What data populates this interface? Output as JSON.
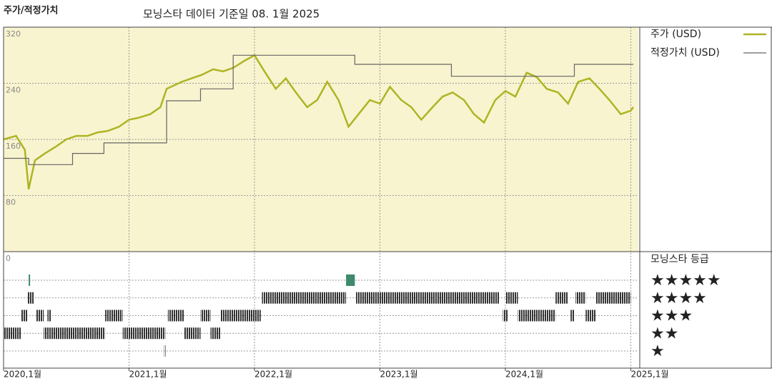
{
  "header": {
    "title": "주가/적정가치",
    "subtitle": "모닝스타 데이터 기준일 08. 1월 2025"
  },
  "chart_data": {
    "type": "line",
    "xlim": [
      2020,
      2025.06
    ],
    "xticks": [
      {
        "value": 2020,
        "label": "2020,1월"
      },
      {
        "value": 2021,
        "label": "2021,1월"
      },
      {
        "value": 2022,
        "label": "2022,1월"
      },
      {
        "value": 2023,
        "label": "2023,1월"
      },
      {
        "value": 2024,
        "label": "2024,1월"
      },
      {
        "value": 2025,
        "label": "2025,1월"
      }
    ],
    "ylim": [
      0,
      320
    ],
    "yticks": [
      0,
      80,
      160,
      240,
      320
    ],
    "grid": true,
    "background": "#f8f4cf",
    "series": [
      {
        "name": "주가 (USD)",
        "color": "#aeb424",
        "x": [
          2020.0,
          2020.1,
          2020.17,
          2020.2,
          2020.25,
          2020.33,
          2020.42,
          2020.5,
          2020.58,
          2020.67,
          2020.75,
          2020.83,
          2020.92,
          2021.0,
          2021.08,
          2021.17,
          2021.25,
          2021.3,
          2021.42,
          2021.5,
          2021.58,
          2021.67,
          2021.75,
          2021.83,
          2021.92,
          2022.0,
          2022.08,
          2022.17,
          2022.25,
          2022.33,
          2022.42,
          2022.5,
          2022.58,
          2022.67,
          2022.75,
          2022.83,
          2022.92,
          2023.0,
          2023.08,
          2023.17,
          2023.25,
          2023.33,
          2023.42,
          2023.5,
          2023.58,
          2023.67,
          2023.75,
          2023.83,
          2023.92,
          2024.0,
          2024.08,
          2024.17,
          2024.25,
          2024.33,
          2024.42,
          2024.5,
          2024.58,
          2024.67,
          2024.75,
          2024.83,
          2024.92,
          2025.0,
          2025.02
        ],
        "values": [
          160,
          165,
          145,
          89,
          130,
          140,
          150,
          160,
          165,
          165,
          170,
          172,
          178,
          188,
          191,
          196,
          206,
          232,
          242,
          247,
          252,
          260,
          257,
          262,
          272,
          280,
          257,
          232,
          247,
          227,
          206,
          216,
          242,
          216,
          178,
          196,
          216,
          211,
          235,
          216,
          206,
          188,
          206,
          221,
          227,
          216,
          196,
          184,
          216,
          229,
          221,
          255,
          249,
          232,
          227,
          211,
          242,
          247,
          232,
          216,
          196,
          201,
          206
        ]
      },
      {
        "name": "적정가치 (USD)",
        "color": "#666666",
        "x": [
          2020.0,
          2020.2,
          2020.2,
          2020.55,
          2020.55,
          2020.8,
          2020.8,
          2021.3,
          2021.3,
          2021.57,
          2021.57,
          2021.83,
          2021.83,
          2022.8,
          2022.8,
          2023.57,
          2023.57,
          2024.55,
          2024.55,
          2025.02
        ],
        "values": [
          133,
          133,
          124,
          124,
          140,
          140,
          155,
          155,
          215,
          215,
          232,
          232,
          280,
          280,
          267,
          267,
          250,
          250,
          267,
          267
        ]
      }
    ],
    "rating": {
      "title": "모닝스타 등급",
      "levels": [
        {
          "value": 5,
          "label": "★★★★★",
          "color": "#3d8a6c"
        },
        {
          "value": 4,
          "label": "★★★★",
          "color": "#333333"
        },
        {
          "value": 3,
          "label": "★★★",
          "color": "#333333"
        },
        {
          "value": 2,
          "label": "★★",
          "color": "#333333"
        },
        {
          "value": 1,
          "label": "★",
          "color": "#333333"
        }
      ],
      "start": [
        2020.2,
        2022.73,
        2020.19,
        2022.06,
        2022.81,
        2024.0,
        2024.4,
        2024.56,
        2024.72,
        2020.14,
        2020.26,
        2020.35,
        2020.81,
        2021.31,
        2021.57,
        2021.73,
        2023.98,
        2024.1,
        2024.52,
        2024.64,
        2020.0,
        2020.32,
        2020.95,
        2021.44,
        2021.65,
        2021.28
      ],
      "end": [
        2020.21,
        2022.8,
        2020.24,
        2022.73,
        2023.95,
        2024.1,
        2024.5,
        2024.64,
        2025.0,
        2020.19,
        2020.32,
        2020.38,
        2020.95,
        2021.44,
        2021.65,
        2022.05,
        2024.02,
        2024.4,
        2024.55,
        2024.72,
        2020.14,
        2020.81,
        2021.29,
        2021.57,
        2021.73,
        2021.29
      ],
      "stars": [
        5,
        5,
        4,
        4,
        4,
        4,
        4,
        4,
        4,
        3,
        3,
        3,
        3,
        3,
        3,
        3,
        3,
        3,
        3,
        3,
        2,
        2,
        2,
        2,
        2,
        1
      ]
    }
  }
}
